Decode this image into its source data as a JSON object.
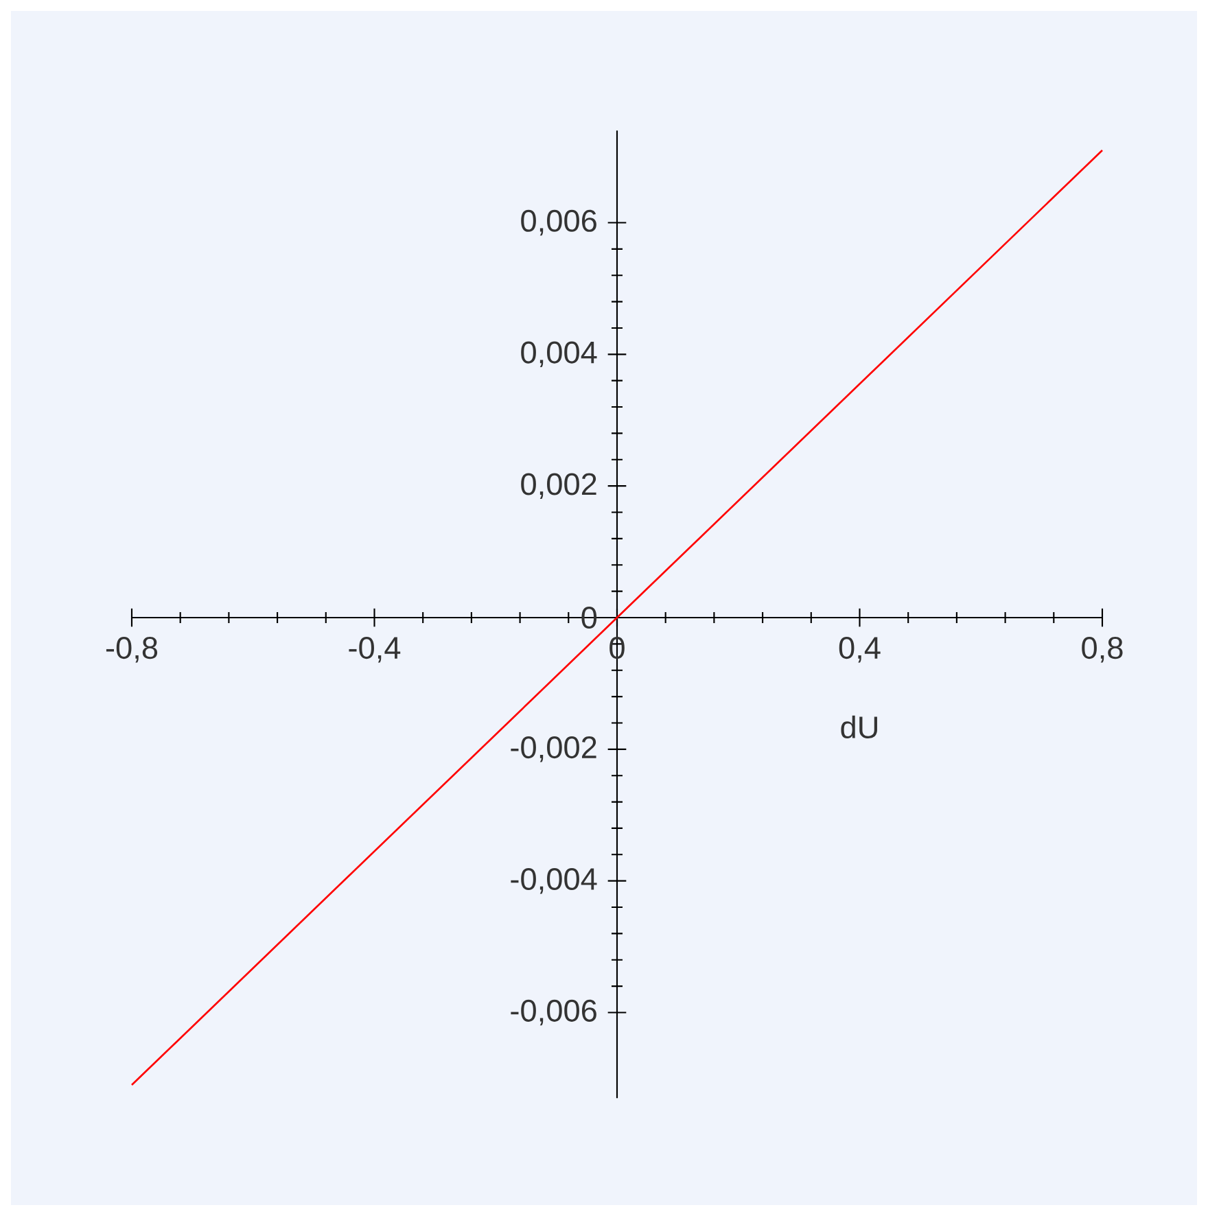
{
  "chart_data": {
    "type": "line",
    "xlabel": "dU",
    "series": [
      {
        "color": "#ff0000",
        "x": [
          -0.8,
          0,
          0.8
        ],
        "values": [
          -0.0071,
          0,
          0.0071
        ]
      }
    ],
    "xlim": [
      -0.8,
      0.8
    ],
    "ylim": [
      -0.0073,
      0.0074
    ],
    "xticks": [
      {
        "value": -0.8,
        "label": "-0,8"
      },
      {
        "value": -0.4,
        "label": "-0,4"
      },
      {
        "value": 0,
        "label": "0"
      },
      {
        "value": 0.4,
        "label": "0,4"
      },
      {
        "value": 0.8,
        "label": "0,8"
      }
    ],
    "yticks": [
      {
        "value": -0.006,
        "label": "-0,006"
      },
      {
        "value": -0.004,
        "label": "-0,004"
      },
      {
        "value": -0.002,
        "label": "-0,002"
      },
      {
        "value": 0,
        "label": "0"
      },
      {
        "value": 0.002,
        "label": "0,002"
      },
      {
        "value": 0.004,
        "label": "0,004"
      },
      {
        "value": 0.006,
        "label": "0,006"
      }
    ],
    "marker": "none",
    "line_style": "solid"
  }
}
